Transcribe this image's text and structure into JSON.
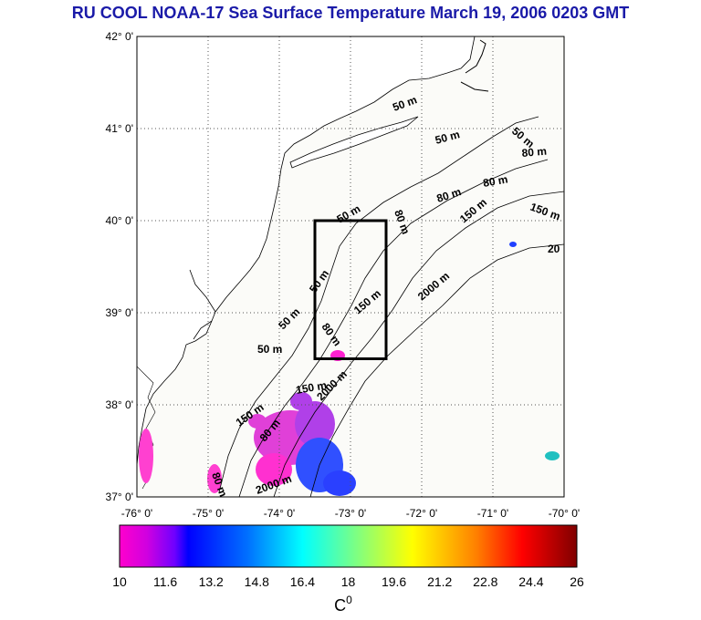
{
  "title": "RU COOL  NOAA-17 Sea Surface Temperature March 19, 2006 0203 GMT",
  "map": {
    "lon_range": [
      -76,
      -70
    ],
    "lat_range": [
      37,
      42
    ],
    "lon_ticks": [
      "-76° 0'",
      "-75° 0'",
      "-74° 0'",
      "-73° 0'",
      "-72° 0'",
      "-71° 0'",
      "-70° 0'"
    ],
    "lat_ticks": [
      "42° 0'",
      "41° 0'",
      "40° 0'",
      "39° 0'",
      "38° 0'",
      "37° 0'"
    ],
    "grid": "dotted",
    "study_box": {
      "lon": [
        -73.5,
        -72.5
      ],
      "lat": [
        38.5,
        40.0
      ]
    },
    "contour_labels": [
      "50 m",
      "50 m",
      "50 m",
      "50 m",
      "50 m",
      "50 m",
      "50 m",
      "80 m",
      "80 m",
      "80 m",
      "80 m",
      "80 m",
      "80 m",
      "80 m",
      "150 m",
      "150 m",
      "150 m",
      "150 m",
      "150 m",
      "2000 m",
      "2000 m",
      "2000 m",
      "20"
    ]
  },
  "colorbar": {
    "min": 10,
    "max": 26,
    "tick_labels": [
      "10",
      "11.6",
      "13.2",
      "14.8",
      "16.4",
      "18",
      "19.6",
      "21.2",
      "22.8",
      "24.4",
      "26"
    ],
    "unit": "C",
    "unit_superscript": "0",
    "colors": [
      "#ff00cc",
      "#c000e0",
      "#6000ff",
      "#0000ff",
      "#0080ff",
      "#00ffff",
      "#80ff80",
      "#ffff00",
      "#ff8000",
      "#ff0000",
      "#800000"
    ]
  },
  "colors": {
    "title": "#1a1aa8",
    "land": "#ffffff",
    "ocean": "#fbfbf8",
    "box": "#000000"
  }
}
